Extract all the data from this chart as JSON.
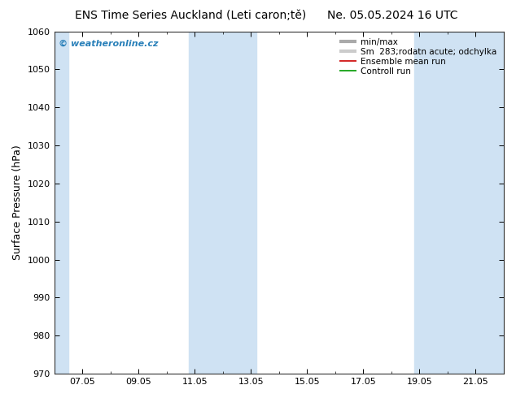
{
  "title_left": "ENS Time Series Auckland (Leti caron;tě)",
  "title_right": "Ne. 05.05.2024 16 UTC",
  "ylabel": "Surface Pressure (hPa)",
  "ylim": [
    970,
    1060
  ],
  "yticks": [
    970,
    980,
    990,
    1000,
    1010,
    1020,
    1030,
    1040,
    1050,
    1060
  ],
  "xlim": [
    0,
    16
  ],
  "xtick_labels": [
    "07.05",
    "09.05",
    "11.05",
    "13.05",
    "15.05",
    "17.05",
    "19.05",
    "21.05"
  ],
  "xtick_positions": [
    1,
    3,
    5,
    7,
    9,
    11,
    13,
    15
  ],
  "shaded_bands": [
    {
      "x_start": -0.1,
      "x_end": 0.5
    },
    {
      "x_start": 4.8,
      "x_end": 7.2
    },
    {
      "x_start": 12.8,
      "x_end": 16.1
    }
  ],
  "band_color": "#cfe2f3",
  "background_color": "#ffffff",
  "plot_bg_color": "#ffffff",
  "watermark": "© weatheronline.cz",
  "watermark_color": "#2980b9",
  "legend_labels": [
    "min/max",
    "Sm  283;rodatn acute; odchylka",
    "Ensemble mean run",
    "Controll run"
  ],
  "legend_colors": [
    "#aaaaaa",
    "#cccccc",
    "#cc0000",
    "#009900"
  ],
  "legend_lws": [
    3.0,
    3.0,
    1.2,
    1.2
  ],
  "title_fontsize": 10,
  "axis_label_fontsize": 9,
  "tick_fontsize": 8,
  "legend_fontsize": 7.5
}
